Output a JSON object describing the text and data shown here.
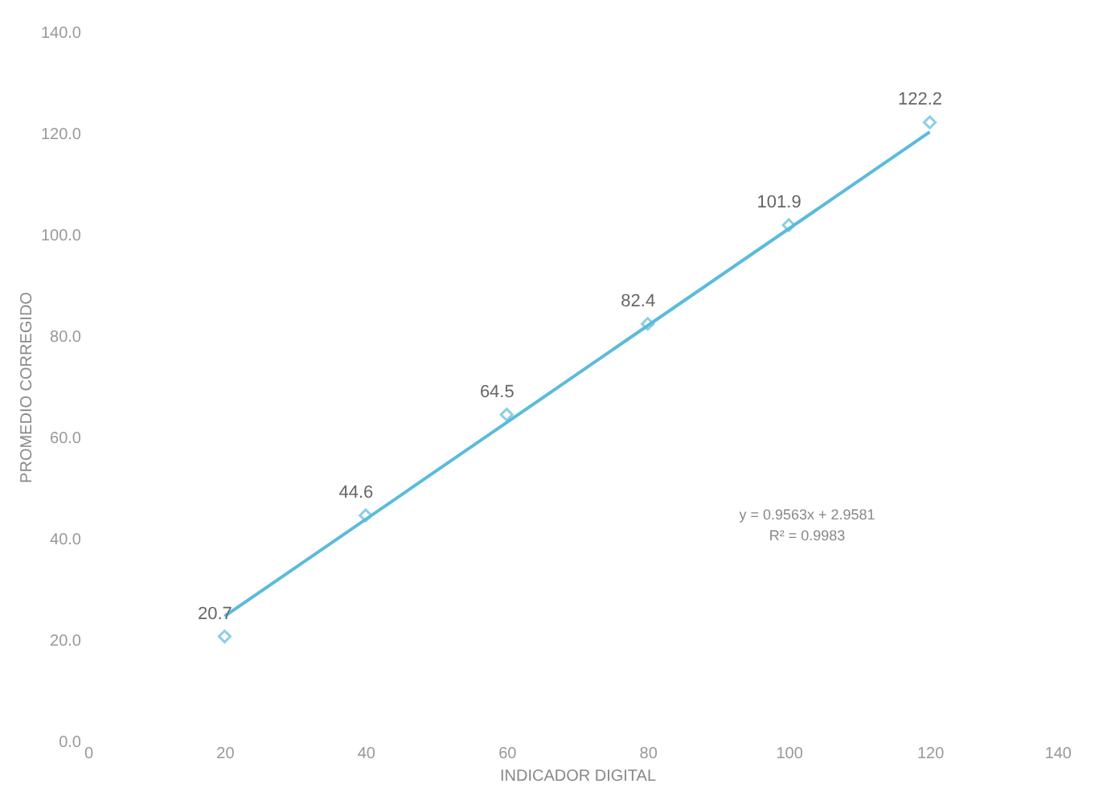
{
  "chart_data": {
    "type": "scatter",
    "xlabel": "INDICADOR DIGITAL",
    "ylabel": "PROMEDIO CORREGIDO",
    "xlim": [
      0,
      140
    ],
    "xticks": [
      0,
      20,
      40,
      60,
      80,
      100,
      120,
      140
    ],
    "ylim": [
      0,
      140
    ],
    "yticks": [
      {
        "value": 0,
        "label": "0.0"
      },
      {
        "value": 20,
        "label": "20.0"
      },
      {
        "value": 40,
        "label": "40.0"
      },
      {
        "value": 60,
        "label": "60.0"
      },
      {
        "value": 80,
        "label": "80.0"
      },
      {
        "value": 100,
        "label": "100.0"
      },
      {
        "value": 120,
        "label": "120.0"
      },
      {
        "value": 140,
        "label": "140.0"
      }
    ],
    "grid": false,
    "series": [
      {
        "type": "line",
        "color": "#5bbbdb",
        "x": [
          20,
          120
        ],
        "values": [
          24.7,
          120.3
        ],
        "line_style": "solid",
        "marker": "none"
      },
      {
        "color": "#5bbbdb",
        "x": [
          20,
          40,
          60,
          80,
          100,
          120
        ],
        "values": [
          20.7,
          44.6,
          64.5,
          82.4,
          101.9,
          122.2
        ],
        "marker": "diamond",
        "value_labels": [
          "20.7",
          "44.6",
          "64.5",
          "82.4",
          "101.9",
          "122.2"
        ]
      }
    ],
    "annotations": [
      "y = 0.9563x + 2.9581",
      "R² = 0.9983"
    ]
  }
}
